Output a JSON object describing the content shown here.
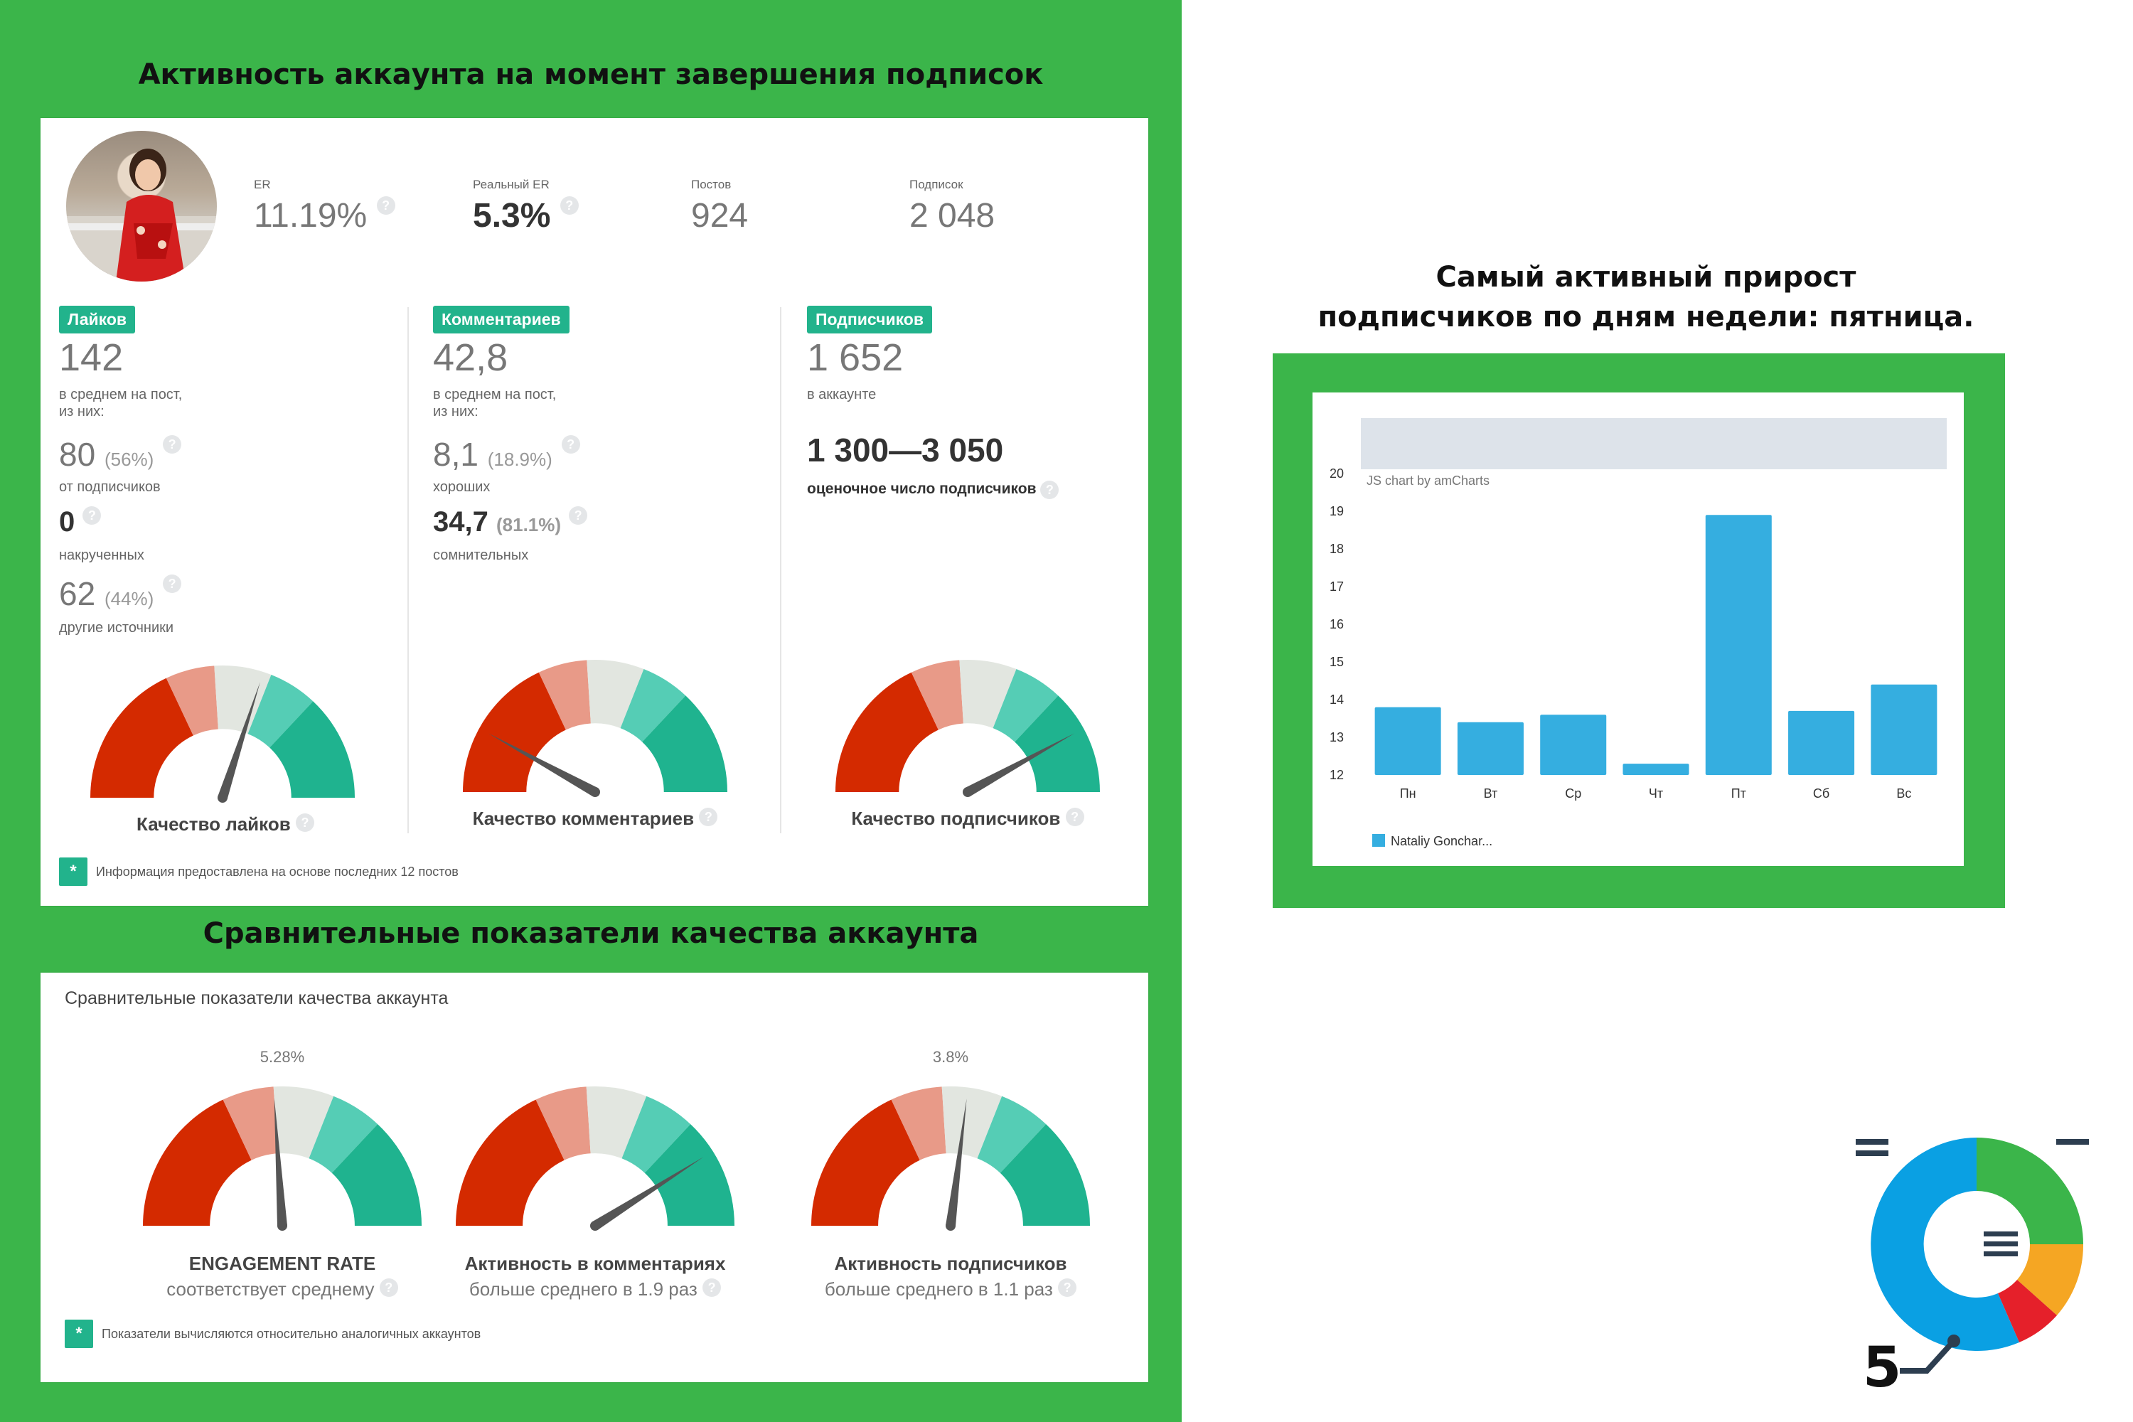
{
  "section1_title": "Активность аккаунта на момент завершения подписок",
  "section2_title": "Сравнительные показатели качества аккаунта",
  "profile": {
    "stats": [
      {
        "label": "ER",
        "value": "11.19%"
      },
      {
        "label": "Реальный ER",
        "value": "5.3%"
      },
      {
        "label": "Постов",
        "value": "924"
      },
      {
        "label": "Подписок",
        "value": "2 048"
      }
    ]
  },
  "likes": {
    "badge": "Лайков",
    "value": "142",
    "desc_line1": "в среднем на пост,",
    "desc_line2": "из них:",
    "subscribers_value": "80",
    "subscribers_pct": "(56%)",
    "subscribers_label": "от подписчиков",
    "boosted_value": "0",
    "boosted_label": "накрученных",
    "other_value": "62",
    "other_pct": "(44%)",
    "other_label": "другие источники",
    "gauge_label": "Качество лайков"
  },
  "comments": {
    "badge": "Комментариев",
    "value": "42,8",
    "desc_line1": "в среднем на пост,",
    "desc_line2": "из них:",
    "good_value": "8,1",
    "good_pct": "(18.9%)",
    "good_label": "хороших",
    "doubtful_value": "34,7",
    "doubtful_pct": "(81.1%)",
    "doubtful_label": "сомнительных",
    "gauge_label": "Качество комментариев"
  },
  "followers": {
    "badge": "Подписчиков",
    "value": "1 652",
    "desc": "в аккаунте",
    "estimate": "1 300—3 050",
    "estimate_label": "оценочное число подписчиков",
    "gauge_label": "Качество подписчиков"
  },
  "note1": "Информация предоставлена на основе последних 12 постов",
  "compare": {
    "card_title": "Сравнительные показатели качества аккаунта",
    "gauges": [
      {
        "top_value": "5.28%",
        "title": "ENGAGEMENT RATE",
        "subtitle": "соответствует среднему",
        "needle": 0.48
      },
      {
        "top_value": "",
        "title": "Активность в комментариях",
        "subtitle": "больше среднего в 1.9 раз",
        "needle": 0.82
      },
      {
        "top_value": "3.8%",
        "title": "Активность подписчиков",
        "subtitle": "больше среднего в 1.1 раз",
        "needle": 0.54
      }
    ],
    "note": "Показатели вычисляются относительно аналогичных аккаунтов"
  },
  "quality_gauges": {
    "likes": 0.6,
    "comments": 0.16,
    "followers": 0.84
  },
  "right_title_line1": "Самый активный прирост",
  "right_title_line2": "подписчиков по дням недели: пятница.",
  "logo_number": "5",
  "colors": {
    "green": "#3bb54a",
    "teal": "#22b38c",
    "bar": "#35aee0",
    "red": "#d42a00"
  },
  "chart_data": {
    "type": "bar",
    "categories": [
      "Пн",
      "Вт",
      "Ср",
      "Чт",
      "Пт",
      "Сб",
      "Вс"
    ],
    "series": [
      {
        "name": "Nataliy Gonchar...",
        "values": [
          13.8,
          13.4,
          13.6,
          12.3,
          18.9,
          13.7,
          14.4
        ]
      }
    ],
    "y_ticks": [
      "12",
      "13",
      "14",
      "15",
      "16",
      "17",
      "18",
      "19",
      "20"
    ],
    "ylim": [
      12,
      20
    ],
    "credit": "JS chart by amCharts",
    "legend_position": "bottom-left",
    "grid": false
  }
}
